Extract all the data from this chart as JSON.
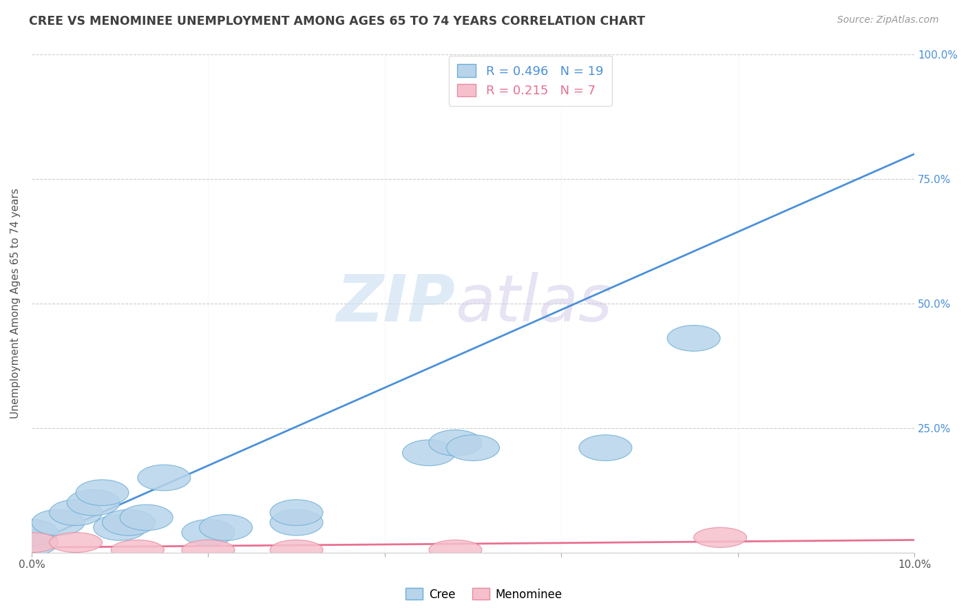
{
  "title": "CREE VS MENOMINEE UNEMPLOYMENT AMONG AGES 65 TO 74 YEARS CORRELATION CHART",
  "source": "Source: ZipAtlas.com",
  "ylabel": "Unemployment Among Ages 65 to 74 years",
  "xlim": [
    0.0,
    0.1
  ],
  "ylim": [
    0.0,
    1.0
  ],
  "xticks": [
    0.0,
    0.02,
    0.04,
    0.06,
    0.08,
    0.1
  ],
  "xticklabels": [
    "0.0%",
    "",
    "",
    "",
    "",
    "10.0%"
  ],
  "yticks": [
    0.0,
    0.25,
    0.5,
    0.75,
    1.0
  ],
  "right_yticklabels": [
    "",
    "25.0%",
    "50.0%",
    "75.0%",
    "100.0%"
  ],
  "cree_color": "#b8d4ea",
  "cree_edge_color": "#6aaed6",
  "cree_line_color": "#4a90d9",
  "menominee_color": "#f5c0cc",
  "menominee_edge_color": "#e88aa0",
  "menominee_line_color": "#e87090",
  "cree_R": 0.496,
  "cree_N": 19,
  "menominee_R": 0.215,
  "menominee_N": 7,
  "cree_x": [
    0.0,
    0.0,
    0.003,
    0.005,
    0.007,
    0.008,
    0.01,
    0.011,
    0.013,
    0.015,
    0.02,
    0.022,
    0.03,
    0.03,
    0.045,
    0.048,
    0.05,
    0.065,
    0.075
  ],
  "cree_y": [
    0.02,
    0.04,
    0.06,
    0.08,
    0.1,
    0.12,
    0.05,
    0.06,
    0.07,
    0.15,
    0.04,
    0.05,
    0.06,
    0.08,
    0.2,
    0.22,
    0.21,
    0.21,
    0.43
  ],
  "menominee_x": [
    0.0,
    0.005,
    0.012,
    0.02,
    0.03,
    0.048,
    0.078
  ],
  "menominee_y": [
    0.02,
    0.02,
    0.005,
    0.005,
    0.005,
    0.005,
    0.03
  ],
  "cree_line_x0": 0.0,
  "cree_line_y0": 0.018,
  "cree_line_x1": 0.1,
  "cree_line_y1": 0.8,
  "men_line_x0": 0.0,
  "men_line_y0": 0.01,
  "men_line_x1": 0.1,
  "men_line_y1": 0.025,
  "watermark_zip": "ZIP",
  "watermark_atlas": "atlas",
  "background_color": "#ffffff",
  "grid_color": "#cccccc",
  "title_color": "#404040"
}
